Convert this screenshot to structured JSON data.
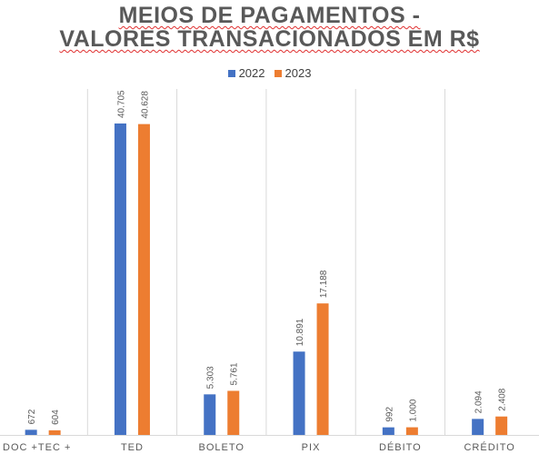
{
  "chart_data": {
    "type": "bar",
    "title_line1": "MEIOS DE PAGAMENTOS -",
    "title_line2": "VALORES TRANSACIONADOS EM R$",
    "categories": [
      "DOC +TEC +",
      "TED",
      "BOLETO",
      "PIX",
      "DÉBITO",
      "CRÉDITO"
    ],
    "series": [
      {
        "name": "2022",
        "color": "#4472c4",
        "values": [
          672,
          40705,
          5303,
          10891,
          992,
          2094
        ],
        "labels": [
          "672",
          "40.705",
          "5.303",
          "10.891",
          "992",
          "2.094"
        ]
      },
      {
        "name": "2023",
        "color": "#ed7d31",
        "values": [
          604,
          40628,
          5761,
          17188,
          1000,
          2408
        ],
        "labels": [
          "604",
          "40.628",
          "5.761",
          "17.188",
          "1.000",
          "2.408"
        ]
      }
    ],
    "ylim": [
      0,
      40705
    ],
    "grid": "vertical-category-separators",
    "legend": "top-center"
  }
}
